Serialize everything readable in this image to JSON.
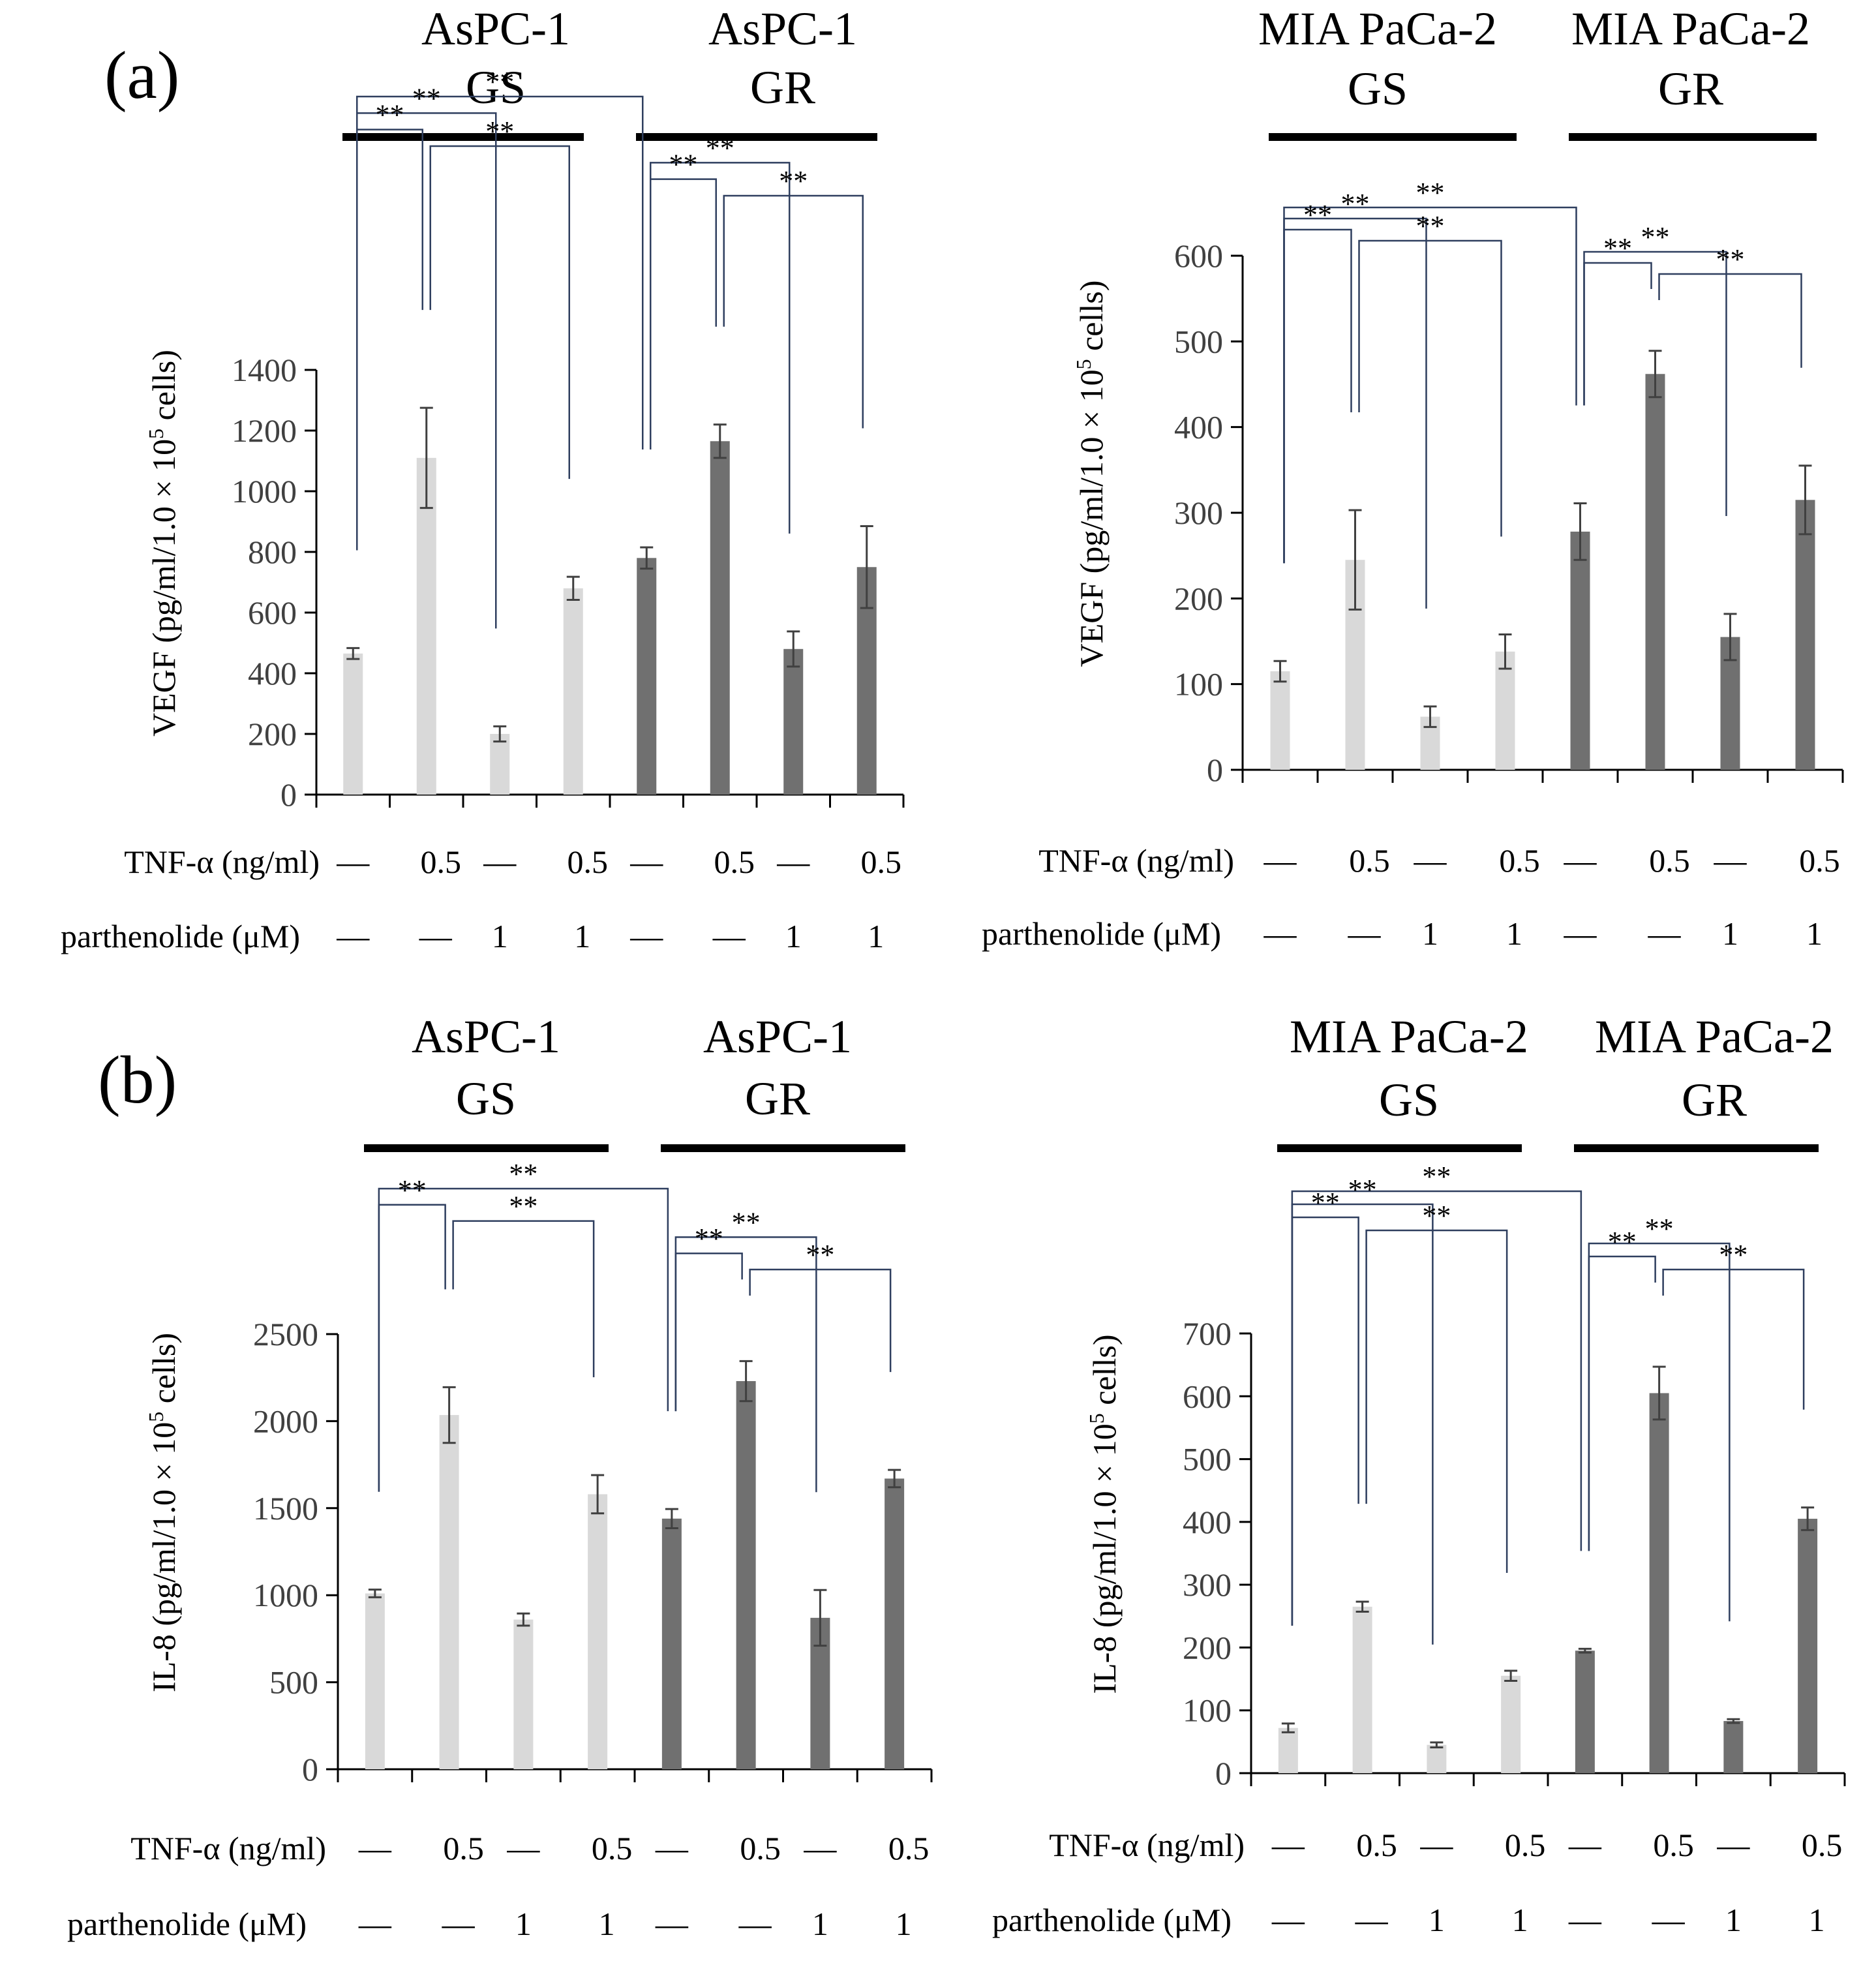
{
  "colors": {
    "gs_bar": "#d9d9d9",
    "gr_bar": "#707070",
    "bracket": "#2f3f5f",
    "axis": "#000000",
    "error": "#404040"
  },
  "row_labels": {
    "tnf": "TNF-α (ng/ml)",
    "parthenolide": "parthenolide (μM)"
  },
  "conditions": {
    "tnf": [
      "—",
      "0.5",
      "—",
      "0.5",
      "—",
      "0.5",
      "—",
      "0.5"
    ],
    "parthenolide": [
      "—",
      "—",
      "1",
      "1",
      "—",
      "—",
      "1",
      "1"
    ]
  },
  "significance_label": "**",
  "chart_data": [
    {
      "panel": "(a)",
      "type": "bar",
      "cell_line": "AsPC-1",
      "group_labels": [
        [
          "AsPC-1",
          "GS"
        ],
        [
          "AsPC-1",
          "GR"
        ]
      ],
      "ylabel_main": "VEGF (pg/ml/1.0 × 10",
      "ylabel_sup": "5",
      "ylabel_end": " cells)",
      "ylim": [
        0,
        1400
      ],
      "yticks": [
        0,
        200,
        400,
        600,
        800,
        1000,
        1200,
        1400
      ],
      "series": [
        {
          "name": "GS",
          "values": [
            465,
            1110,
            200,
            680
          ],
          "errors": [
            18,
            165,
            25,
            38
          ]
        },
        {
          "name": "GR",
          "values": [
            780,
            1165,
            480,
            750
          ],
          "errors": [
            35,
            55,
            58,
            135
          ]
        }
      ],
      "comparisons": [
        [
          0,
          4
        ],
        [
          0,
          2
        ],
        [
          0,
          1
        ],
        [
          1,
          3
        ],
        [
          4,
          6
        ],
        [
          4,
          5
        ],
        [
          5,
          7
        ]
      ]
    },
    {
      "panel": "",
      "type": "bar",
      "cell_line": "MIA PaCa-2",
      "group_labels": [
        [
          "MIA PaCa-2",
          "GS"
        ],
        [
          "MIA PaCa-2",
          "GR"
        ]
      ],
      "ylabel_main": "VEGF (pg/ml/1.0 × 10",
      "ylabel_sup": "5",
      "ylabel_end": " cells)",
      "ylim": [
        0,
        600
      ],
      "yticks": [
        0,
        100,
        200,
        300,
        400,
        500,
        600
      ],
      "series": [
        {
          "name": "GS",
          "values": [
            115,
            245,
            62,
            138
          ],
          "errors": [
            12,
            58,
            12,
            20
          ]
        },
        {
          "name": "GR",
          "values": [
            278,
            462,
            155,
            315
          ],
          "errors": [
            33,
            27,
            27,
            40
          ]
        }
      ],
      "comparisons": [
        [
          0,
          4
        ],
        [
          0,
          2
        ],
        [
          0,
          1
        ],
        [
          1,
          3
        ],
        [
          4,
          6
        ],
        [
          4,
          5
        ],
        [
          5,
          7
        ]
      ]
    },
    {
      "panel": "(b)",
      "type": "bar",
      "cell_line": "AsPC-1",
      "group_labels": [
        [
          "AsPC-1",
          "GS"
        ],
        [
          "AsPC-1",
          "GR"
        ]
      ],
      "ylabel_main": "IL-8 (pg/ml/1.0 × 10",
      "ylabel_sup": "5",
      "ylabel_end": " cells)",
      "ylim": [
        0,
        2500
      ],
      "yticks": [
        0,
        500,
        1000,
        1500,
        2000,
        2500
      ],
      "series": [
        {
          "name": "GS",
          "values": [
            1010,
            2035,
            860,
            1580
          ],
          "errors": [
            22,
            160,
            35,
            110
          ]
        },
        {
          "name": "GR",
          "values": [
            1440,
            2230,
            870,
            1670
          ],
          "errors": [
            55,
            115,
            160,
            50
          ]
        }
      ],
      "comparisons": [
        [
          0,
          4
        ],
        [
          0,
          1
        ],
        [
          1,
          3
        ],
        [
          4,
          6
        ],
        [
          4,
          5
        ],
        [
          5,
          7
        ]
      ]
    },
    {
      "panel": "",
      "type": "bar",
      "cell_line": "MIA PaCa-2",
      "group_labels": [
        [
          "MIA PaCa-2",
          "GS"
        ],
        [
          "MIA PaCa-2",
          "GR"
        ]
      ],
      "ylabel_main": "IL-8 (pg/ml/1.0 × 10",
      "ylabel_sup": "5",
      "ylabel_end": " cells)",
      "ylim": [
        0,
        700
      ],
      "yticks": [
        0,
        100,
        200,
        300,
        400,
        500,
        600,
        700
      ],
      "series": [
        {
          "name": "GS",
          "values": [
            72,
            265,
            45,
            155
          ],
          "errors": [
            7,
            8,
            4,
            8
          ]
        },
        {
          "name": "GR",
          "values": [
            195,
            605,
            83,
            405
          ],
          "errors": [
            3,
            42,
            3,
            18
          ]
        }
      ],
      "comparisons": [
        [
          0,
          4
        ],
        [
          0,
          2
        ],
        [
          0,
          1
        ],
        [
          1,
          3
        ],
        [
          4,
          6
        ],
        [
          4,
          5
        ],
        [
          5,
          7
        ]
      ]
    }
  ]
}
